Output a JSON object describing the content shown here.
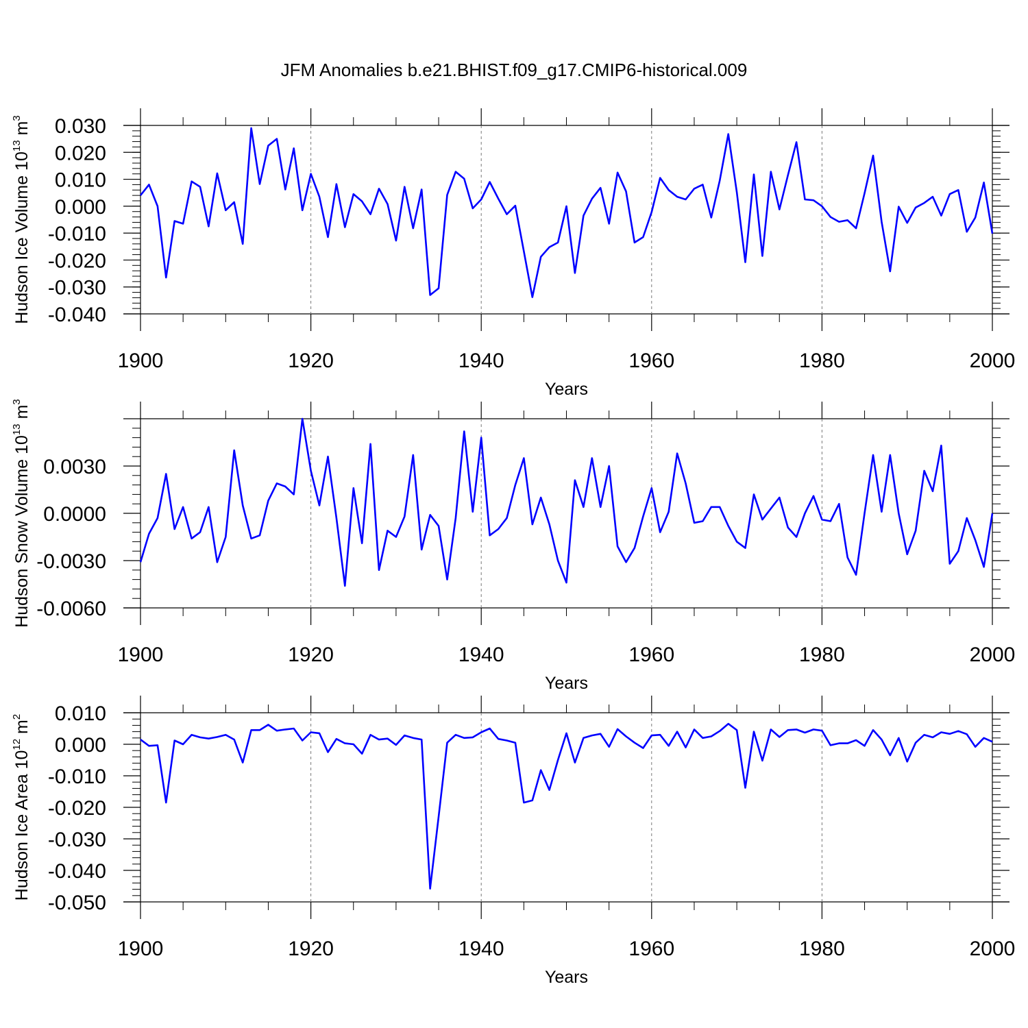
{
  "title": "JFM Anomalies b.e21.BHIST.f09_g17.CMIP6-historical.009",
  "line_color": "#0000ff",
  "chart_data": [
    {
      "type": "line",
      "name": "ice-volume",
      "ylabel": "Hudson Ice Volume 10",
      "ylabel_exp": "13",
      "ylabel_unit": " m",
      "ylabel_unit_exp": "3",
      "xlabel": "Years",
      "xlim": [
        1900,
        2000
      ],
      "ylim": [
        -0.04,
        0.03
      ],
      "xticks": [
        "1900",
        "1920",
        "1940",
        "1960",
        "1980",
        "2000"
      ],
      "yticks": [
        {
          "value": 0.03,
          "label": "0.030"
        },
        {
          "value": 0.02,
          "label": "0.020"
        },
        {
          "value": 0.01,
          "label": "0.010"
        },
        {
          "value": 0.0,
          "label": "0.000"
        },
        {
          "value": -0.01,
          "label": "-0.010"
        },
        {
          "value": -0.02,
          "label": "-0.020"
        },
        {
          "value": -0.03,
          "label": "-0.030"
        },
        {
          "value": -0.04,
          "label": "-0.040"
        }
      ],
      "x_start": 1900,
      "values": [
        0.004,
        0.008,
        0.0,
        -0.0265,
        -0.0055,
        -0.0065,
        0.0092,
        0.0072,
        -0.0075,
        0.0122,
        -0.0015,
        0.0015,
        -0.014,
        0.029,
        0.0082,
        0.0225,
        0.025,
        0.0062,
        0.0215,
        -0.0015,
        0.012,
        0.0035,
        -0.0115,
        0.0082,
        -0.0078,
        0.0045,
        0.0018,
        -0.003,
        0.0065,
        0.0008,
        -0.0128,
        0.0072,
        -0.0082,
        0.0062,
        -0.033,
        -0.0305,
        0.0042,
        0.0128,
        0.0102,
        -0.0008,
        0.0025,
        0.009,
        0.0028,
        -0.003,
        0.0002,
        -0.0168,
        -0.0338,
        -0.0188,
        -0.0152,
        -0.0135,
        0.0,
        -0.0248,
        -0.0035,
        0.0028,
        0.0068,
        -0.0065,
        0.0125,
        0.0055,
        -0.0135,
        -0.0115,
        -0.0022,
        0.0105,
        0.006,
        0.0035,
        0.0025,
        0.0065,
        0.008,
        -0.0042,
        0.0095,
        0.0268,
        0.0052,
        -0.0208,
        0.0118,
        -0.0185,
        0.0128,
        -0.0012,
        0.0115,
        0.0238,
        0.0025,
        0.0022,
        0.0,
        -0.004,
        -0.0058,
        -0.0052,
        -0.0082,
        0.0048,
        0.0188,
        -0.0058,
        -0.0242,
        -0.0002,
        -0.0062,
        -0.0005,
        0.0012,
        0.0035,
        -0.0035,
        0.0045,
        0.006,
        -0.0095,
        -0.0042,
        0.0088,
        -0.0102
      ]
    },
    {
      "type": "line",
      "name": "snow-volume",
      "ylabel": "Hudson Snow Volume 10",
      "ylabel_exp": "13",
      "ylabel_unit": " m",
      "ylabel_unit_exp": "3",
      "xlabel": "Years",
      "xlim": [
        1900,
        2000
      ],
      "ylim": [
        -0.006,
        0.006
      ],
      "xticks": [
        "1900",
        "1920",
        "1940",
        "1960",
        "1980",
        "2000"
      ],
      "yticks": [
        {
          "value": 0.003,
          "label": "0.0030"
        },
        {
          "value": 0.0,
          "label": "0.0000"
        },
        {
          "value": -0.003,
          "label": "-0.0030"
        },
        {
          "value": -0.006,
          "label": "-0.0060"
        }
      ],
      "x_start": 1900,
      "values": [
        -0.0031,
        -0.0013,
        -0.0003,
        0.0025,
        -0.001,
        0.0004,
        -0.0016,
        -0.0012,
        0.0004,
        -0.0031,
        -0.0015,
        0.004,
        0.0005,
        -0.0016,
        -0.0014,
        0.0008,
        0.0019,
        0.0017,
        0.0012,
        0.006,
        0.0027,
        0.0005,
        0.0036,
        -0.0003,
        -0.0046,
        0.0016,
        -0.0019,
        0.0044,
        -0.0036,
        -0.0011,
        -0.0015,
        -0.0002,
        0.0037,
        -0.0023,
        -0.0001,
        -0.0008,
        -0.0042,
        -0.0003,
        0.0052,
        0.0001,
        0.0048,
        -0.0014,
        -0.001,
        -0.0003,
        0.0018,
        0.0035,
        -0.0007,
        0.001,
        -0.0007,
        -0.003,
        -0.0044,
        0.0021,
        0.0004,
        0.0035,
        0.0004,
        0.003,
        -0.0021,
        -0.0031,
        -0.0022,
        -0.0002,
        0.0016,
        -0.0012,
        0.0001,
        0.0038,
        0.0019,
        -0.0006,
        -0.0005,
        0.0004,
        0.0004,
        -0.0008,
        -0.0018,
        -0.0022,
        0.0012,
        -0.0004,
        0.0003,
        0.001,
        -0.0009,
        -0.0015,
        0.0,
        0.0011,
        -0.0004,
        -0.0005,
        0.0006,
        -0.0028,
        -0.0039,
        0.0,
        0.0037,
        0.0001,
        0.0037,
        0.0,
        -0.0026,
        -0.0011,
        0.0027,
        0.0014,
        0.0043,
        -0.0032,
        -0.0024,
        -0.0003,
        -0.0017,
        -0.0034,
        0.0
      ]
    },
    {
      "type": "line",
      "name": "ice-area",
      "ylabel": "Hudson Ice Area 10",
      "ylabel_exp": "12",
      "ylabel_unit": " m",
      "ylabel_unit_exp": "2",
      "xlabel": "Years",
      "xlim": [
        1900,
        2000
      ],
      "ylim": [
        -0.05,
        0.01
      ],
      "xticks": [
        "1900",
        "1920",
        "1940",
        "1960",
        "1980",
        "2000"
      ],
      "yticks": [
        {
          "value": 0.01,
          "label": "0.010"
        },
        {
          "value": 0.0,
          "label": "0.000"
        },
        {
          "value": -0.01,
          "label": "-0.010"
        },
        {
          "value": -0.02,
          "label": "-0.020"
        },
        {
          "value": -0.03,
          "label": "-0.030"
        },
        {
          "value": -0.04,
          "label": "-0.040"
        },
        {
          "value": -0.05,
          "label": "-0.050"
        }
      ],
      "x_start": 1900,
      "values": [
        0.0015,
        -0.0005,
        -0.0003,
        -0.0185,
        0.0012,
        0.0,
        0.003,
        0.0022,
        0.0018,
        0.0023,
        0.003,
        0.0015,
        -0.0058,
        0.0045,
        0.0045,
        0.0062,
        0.0043,
        0.0047,
        0.005,
        0.0012,
        0.0038,
        0.0035,
        -0.0025,
        0.0017,
        0.0003,
        0.0,
        -0.003,
        0.003,
        0.0015,
        0.0018,
        -0.0002,
        0.0028,
        0.002,
        0.0015,
        -0.0458,
        -0.023,
        0.0005,
        0.003,
        0.002,
        0.0022,
        0.0038,
        0.005,
        0.0017,
        0.0012,
        0.0005,
        -0.0185,
        -0.0178,
        -0.0082,
        -0.0145,
        -0.005,
        0.0035,
        -0.0058,
        0.002,
        0.0028,
        0.0033,
        -0.0008,
        0.0048,
        0.0025,
        0.0005,
        -0.0012,
        0.0028,
        0.003,
        -0.0005,
        0.004,
        -0.001,
        0.0047,
        0.002,
        0.0025,
        0.0042,
        0.0065,
        0.0045,
        -0.0138,
        0.004,
        -0.0052,
        0.0047,
        0.0023,
        0.0045,
        0.0047,
        0.0037,
        0.0047,
        0.0043,
        -0.0003,
        0.0003,
        0.0003,
        0.0013,
        -0.0005,
        0.0045,
        0.0015,
        -0.0035,
        0.002,
        -0.0055,
        0.0005,
        0.003,
        0.0022,
        0.0038,
        0.0033,
        0.0042,
        0.0032,
        -0.0008,
        0.002,
        0.0008
      ]
    }
  ]
}
